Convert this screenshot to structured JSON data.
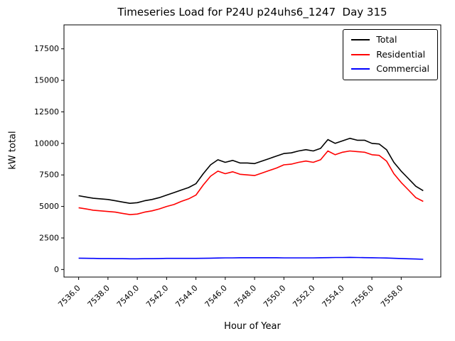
{
  "chart_data": {
    "type": "line",
    "title": "Timeseries Load for P24U p24uhs6_1247  Day 315",
    "xlabel": "Hour of Year",
    "ylabel": "kW total",
    "xlim": [
      7535.0,
      7560.7
    ],
    "ylim": [
      -600,
      19400
    ],
    "grid": false,
    "legend_position": "upper right",
    "xticks": [
      7536,
      7538,
      7540,
      7542,
      7544,
      7546,
      7548,
      7550,
      7552,
      7554,
      7556,
      7558
    ],
    "xtick_labels": [
      "7536.0",
      "7538.0",
      "7540.0",
      "7542.0",
      "7544.0",
      "7546.0",
      "7548.0",
      "7550.0",
      "7552.0",
      "7554.0",
      "7556.0",
      "7558.0"
    ],
    "yticks": [
      0,
      2500,
      5000,
      7500,
      10000,
      12500,
      15000,
      17500
    ],
    "x": [
      7536.0,
      7536.5,
      7537.0,
      7537.5,
      7538.0,
      7538.5,
      7539.0,
      7539.5,
      7540.0,
      7540.5,
      7541.0,
      7541.5,
      7542.0,
      7542.5,
      7543.0,
      7543.5,
      7544.0,
      7544.5,
      7545.0,
      7545.5,
      7546.0,
      7546.5,
      7547.0,
      7547.5,
      7548.0,
      7548.5,
      7549.0,
      7549.5,
      7550.0,
      7550.5,
      7551.0,
      7551.5,
      7552.0,
      7552.5,
      7553.0,
      7553.5,
      7554.0,
      7554.5,
      7555.0,
      7555.5,
      7556.0,
      7556.5,
      7557.0,
      7557.5,
      7558.0,
      7558.5,
      7559.0,
      7559.5
    ],
    "series": [
      {
        "name": "Total",
        "color": "#000000",
        "values": [
          5850,
          5750,
          5650,
          5600,
          5550,
          5450,
          5350,
          5250,
          5300,
          5450,
          5550,
          5700,
          5900,
          6100,
          6300,
          6500,
          6800,
          7600,
          8300,
          8700,
          8500,
          8650,
          8450,
          8450,
          8400,
          8600,
          8800,
          9000,
          9200,
          9250,
          9400,
          9500,
          9400,
          9600,
          10300,
          10000,
          10200,
          10400,
          10250,
          10250,
          10000,
          9950,
          9500,
          8500,
          7800,
          7200,
          6600,
          6250
        ]
      },
      {
        "name": "Residential",
        "color": "#ff0000",
        "values": [
          4900,
          4800,
          4700,
          4650,
          4600,
          4550,
          4450,
          4350,
          4400,
          4550,
          4650,
          4800,
          5000,
          5150,
          5400,
          5600,
          5900,
          6700,
          7400,
          7800,
          7600,
          7750,
          7550,
          7500,
          7450,
          7650,
          7850,
          8050,
          8300,
          8350,
          8500,
          8600,
          8500,
          8700,
          9400,
          9100,
          9300,
          9400,
          9350,
          9300,
          9100,
          9050,
          8600,
          7600,
          6900,
          6300,
          5700,
          5400
        ]
      },
      {
        "name": "Commercial",
        "color": "#0000ff",
        "values": [
          900,
          890,
          880,
          870,
          870,
          860,
          860,
          850,
          850,
          860,
          860,
          870,
          880,
          880,
          880,
          880,
          880,
          890,
          900,
          910,
          920,
          920,
          930,
          930,
          930,
          930,
          930,
          930,
          920,
          920,
          920,
          920,
          920,
          930,
          940,
          950,
          950,
          960,
          950,
          940,
          930,
          920,
          910,
          890,
          870,
          850,
          830,
          810
        ]
      }
    ]
  }
}
